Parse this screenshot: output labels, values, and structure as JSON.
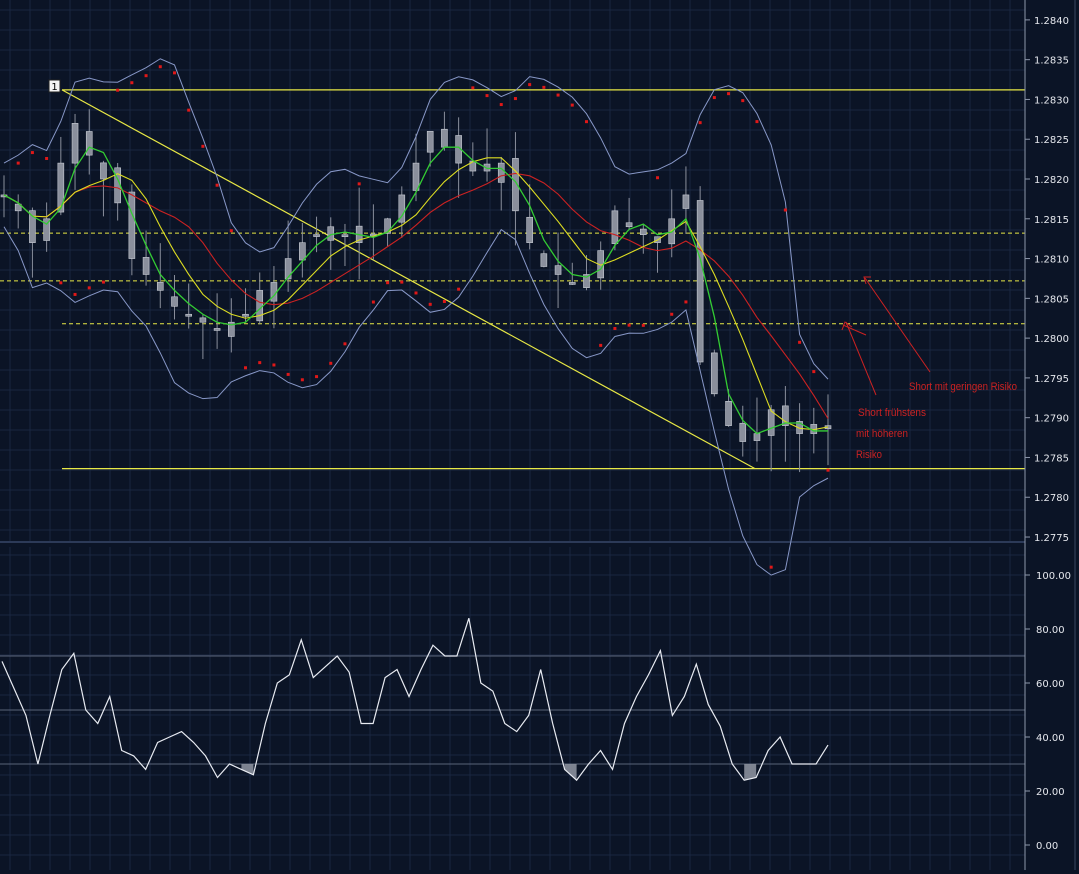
{
  "chart_data": [
    {
      "type": "candlestick",
      "panel": "price",
      "ylim": [
        1.27745,
        1.28425
      ],
      "y_ticks": [
        "1.2840",
        "1.2835",
        "1.2830",
        "1.2825",
        "1.2820",
        "1.2815",
        "1.2810",
        "1.2805",
        "1.2800",
        "1.2795",
        "1.2790",
        "1.2785",
        "1.2780",
        "1.2775"
      ],
      "grid": true,
      "marker_label": "1",
      "horizontal_levels": {
        "solid": [
          1.28312,
          1.27836
        ],
        "dashed": [
          1.28132,
          1.28072,
          1.28018
        ]
      },
      "trendline": {
        "from": 1.28312,
        "to": 1.27836
      },
      "annotations": [
        {
          "text": "Short mit geringen Risiko"
        },
        {
          "text": "Short frühstens"
        },
        {
          "text": "mit höheren"
        },
        {
          "text": "Risiko"
        }
      ],
      "close_series": [
        1.2818,
        1.2816,
        1.2812,
        1.2815,
        1.2822,
        1.2827,
        1.2823,
        1.282,
        1.2817,
        1.281,
        1.2808,
        1.2806,
        1.2804,
        1.2803,
        1.2802,
        1.2801,
        1.2802,
        1.2803,
        1.2806,
        1.2807,
        1.281,
        1.2812,
        1.2813,
        1.2814,
        1.2813,
        1.2812,
        1.2813,
        1.2815,
        1.2818,
        1.2822,
        1.2826,
        1.2824,
        1.2822,
        1.2821,
        1.2821,
        1.2822,
        1.2816,
        1.2812,
        1.2809,
        1.2808,
        1.2807,
        1.2808,
        1.2811,
        1.2816,
        1.2814,
        1.2813,
        1.2812,
        1.2815,
        1.2818,
        1.2797,
        1.2793,
        1.2789,
        1.2787,
        1.2788,
        1.2791,
        1.2789,
        1.2788,
        1.2788,
        1.2789
      ],
      "colors": {
        "background": "#0b1426",
        "grid": "#1a2640",
        "candle": "#8a8f9c",
        "bollinger": "#8898c8",
        "fast_ma": "#33cc33",
        "mid_ma": "#dddd22",
        "slow_ma": "#cc2222",
        "sar": "#e01818",
        "levels": "#e8e845",
        "annotation": "#cc2222"
      }
    },
    {
      "type": "line",
      "panel": "oscillator",
      "ylim": [
        0,
        100
      ],
      "y_ticks": [
        "100.00",
        "80.00",
        "60.00",
        "40.00",
        "20.00",
        "0.00"
      ],
      "levels": [
        70,
        50,
        30
      ],
      "values": [
        68,
        58,
        48,
        30,
        48,
        65,
        71,
        50,
        45,
        55,
        35,
        33,
        28,
        38,
        40,
        42,
        38,
        33,
        25,
        30,
        28,
        26,
        45,
        60,
        63,
        76,
        62,
        66,
        70,
        64,
        45,
        45,
        62,
        65,
        55,
        65,
        74,
        70,
        70,
        84,
        60,
        57,
        45,
        42,
        48,
        65,
        45,
        28,
        24,
        30,
        35,
        28,
        45,
        55,
        63,
        72,
        48,
        55,
        67,
        52,
        44,
        30,
        24,
        25,
        35,
        40,
        30,
        30,
        30,
        37
      ],
      "colors": {
        "line": "#e8ebf2",
        "fill": "#8a8f9c",
        "level": "#5a6478"
      }
    }
  ]
}
